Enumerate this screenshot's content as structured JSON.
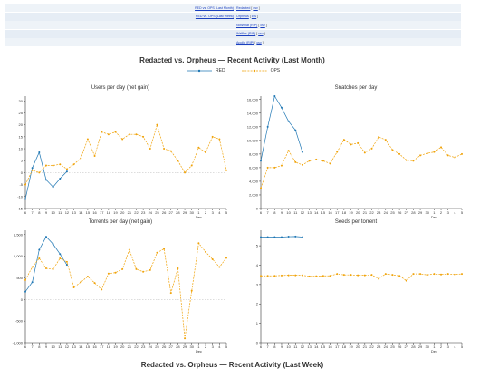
{
  "nav": [
    {
      "left_link": "RED vs. OPS (Last Month)",
      "right_link": "Redacted",
      "right_extra": "csv"
    },
    {
      "left_link": "RED vs. OPS (Last Week)",
      "right_link": "Orpheus",
      "right_extra": "csv"
    },
    {
      "left_link": "",
      "right_link": "NotWhat (RIP)",
      "right_extra": "csv"
    },
    {
      "left_link": "",
      "right_link": "Waffles (RIP)",
      "right_extra": "csv"
    },
    {
      "left_link": "",
      "right_link": "Apollo (RIP)",
      "right_extra": "csv"
    }
  ],
  "page": {
    "title": "Redacted vs. Orpheus  —  Recent Activity (Last Month)",
    "week_title": "Redacted vs. Orpheus  —  Recent Activity (Last Week)"
  },
  "legend": [
    {
      "name": "RED",
      "color": "#1f77b4"
    },
    {
      "name": "OPS",
      "color": "#f0a30a"
    }
  ],
  "chart_data": [
    {
      "type": "line",
      "title": "Users per day (net gain)",
      "x": [
        "6",
        "7",
        "8",
        "9",
        "10",
        "11",
        "12",
        "13",
        "14",
        "15",
        "16",
        "17",
        "18",
        "19",
        "20",
        "21",
        "22",
        "23",
        "24",
        "25",
        "26",
        "27",
        "28",
        "29",
        "30",
        "Dec",
        "2",
        "3",
        "4",
        "5"
      ],
      "x_label_sub": "Dec",
      "ylim": [
        -15,
        32
      ],
      "yticks": [
        -15,
        -10,
        -5,
        0,
        5,
        10,
        15,
        20,
        25,
        30
      ],
      "series": [
        {
          "name": "RED",
          "values": [
            -11,
            2,
            8.5,
            -3,
            -6,
            -2.5,
            0.5,
            null,
            null,
            null,
            null,
            null,
            null,
            null,
            null,
            null,
            null,
            null,
            null,
            null,
            null,
            null,
            null,
            null,
            null,
            null,
            null,
            null,
            null,
            null
          ]
        },
        {
          "name": "OPS",
          "values": [
            -5,
            1,
            0,
            3,
            3,
            3.5,
            1.5,
            3.5,
            6,
            14,
            7,
            17,
            16,
            17,
            14,
            16,
            16,
            15,
            10,
            20,
            10,
            9,
            5,
            0,
            3,
            10.5,
            8.5,
            15,
            14,
            1
          ]
        }
      ]
    },
    {
      "type": "line",
      "title": "Snatches per day",
      "x": [
        "6",
        "7",
        "8",
        "9",
        "10",
        "11",
        "12",
        "13",
        "14",
        "15",
        "16",
        "17",
        "18",
        "19",
        "20",
        "21",
        "22",
        "23",
        "24",
        "25",
        "26",
        "27",
        "28",
        "29",
        "30",
        "Dec",
        "2",
        "3",
        "4",
        "5"
      ],
      "ylim": [
        0,
        16500
      ],
      "yticks": [
        0,
        2000,
        4000,
        6000,
        8000,
        10000,
        12000,
        14000,
        16000
      ],
      "series": [
        {
          "name": "RED",
          "values": [
            7000,
            12000,
            16500,
            14800,
            12800,
            11500,
            8300,
            null,
            null,
            null,
            null,
            null,
            null,
            null,
            null,
            null,
            null,
            null,
            null,
            null,
            null,
            null,
            null,
            null,
            null,
            null,
            null,
            null,
            null,
            null
          ]
        },
        {
          "name": "OPS",
          "values": [
            3000,
            6000,
            6000,
            6300,
            8500,
            6800,
            6400,
            7000,
            7200,
            7000,
            6600,
            8300,
            10100,
            9400,
            9600,
            8200,
            8800,
            10500,
            10100,
            8600,
            8000,
            7100,
            7000,
            7800,
            8100,
            8300,
            9000,
            7800,
            7500,
            8000
          ]
        }
      ]
    },
    {
      "type": "line",
      "title": "Torrents per day (net gain)",
      "x": [
        "6",
        "7",
        "8",
        "9",
        "10",
        "11",
        "12",
        "13",
        "14",
        "15",
        "16",
        "17",
        "18",
        "19",
        "20",
        "21",
        "22",
        "23",
        "24",
        "25",
        "26",
        "27",
        "28",
        "29",
        "30",
        "Dec",
        "2",
        "3",
        "4",
        "5"
      ],
      "ylim": [
        -1000,
        1600
      ],
      "yticks": [
        -1000,
        -500,
        0,
        500,
        1000,
        1500
      ],
      "series": [
        {
          "name": "RED",
          "values": [
            180,
            400,
            1150,
            1450,
            1280,
            1050,
            800,
            null,
            null,
            null,
            null,
            null,
            null,
            null,
            null,
            null,
            null,
            null,
            null,
            null,
            null,
            null,
            null,
            null,
            null,
            null,
            null,
            null,
            null,
            null
          ]
        },
        {
          "name": "OPS",
          "values": [
            450,
            750,
            950,
            720,
            700,
            950,
            870,
            280,
            400,
            530,
            380,
            230,
            600,
            620,
            700,
            1150,
            700,
            640,
            680,
            1080,
            1170,
            150,
            720,
            -900,
            200,
            1300,
            1100,
            930,
            750,
            960
          ]
        }
      ]
    },
    {
      "type": "line",
      "title": "Seeds per torrent",
      "x": [
        "6",
        "7",
        "8",
        "9",
        "10",
        "11",
        "12",
        "13",
        "14",
        "15",
        "16",
        "17",
        "18",
        "19",
        "20",
        "21",
        "22",
        "23",
        "24",
        "25",
        "26",
        "27",
        "28",
        "29",
        "30",
        "Dec",
        "2",
        "3",
        "4",
        "5"
      ],
      "ylim": [
        0,
        5.8
      ],
      "yticks": [
        0,
        1,
        2,
        3,
        4,
        5
      ],
      "series": [
        {
          "name": "RED",
          "values": [
            5.45,
            5.45,
            5.45,
            5.45,
            5.47,
            5.48,
            5.45,
            null,
            null,
            null,
            null,
            null,
            null,
            null,
            null,
            null,
            null,
            null,
            null,
            null,
            null,
            null,
            null,
            null,
            null,
            null,
            null,
            null,
            null,
            null
          ]
        },
        {
          "name": "OPS",
          "values": [
            3.45,
            3.45,
            3.45,
            3.47,
            3.48,
            3.48,
            3.48,
            3.42,
            3.43,
            3.45,
            3.45,
            3.55,
            3.5,
            3.5,
            3.48,
            3.48,
            3.5,
            3.3,
            3.55,
            3.5,
            3.45,
            3.2,
            3.55,
            3.55,
            3.5,
            3.55,
            3.52,
            3.55,
            3.52,
            3.55
          ]
        }
      ]
    }
  ]
}
